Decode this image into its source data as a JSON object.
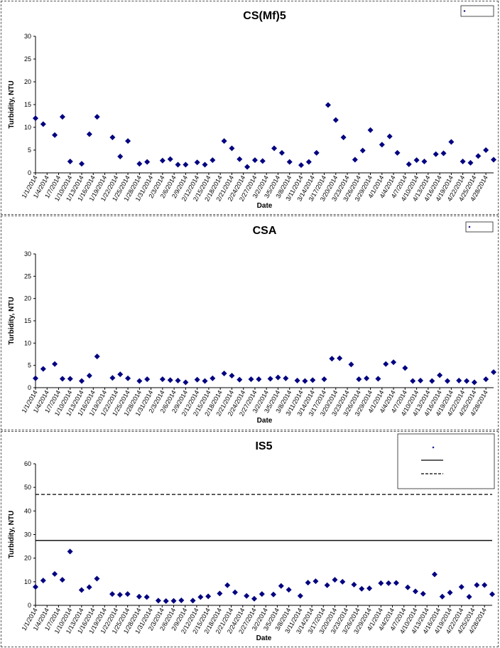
{
  "chart_data": [
    {
      "type": "scatter",
      "title": "CS(Mf)5",
      "xlabel": "Date",
      "ylabel": "Turbidity, NTU",
      "ylim": [
        0,
        30
      ],
      "yticks": [
        0,
        5,
        10,
        15,
        20,
        25,
        30
      ],
      "xlim": [
        "1/1/2014",
        "4/30/2014"
      ],
      "xtick_labels": [
        "1/1/2014",
        "1/4/2014",
        "1/7/2014",
        "1/10/2014",
        "1/13/2014",
        "1/16/2014",
        "1/19/2014",
        "1/22/2014",
        "1/25/2014",
        "1/28/2014",
        "1/31/2014",
        "2/3/2014",
        "2/6/2014",
        "2/9/2014",
        "2/12/2014",
        "2/15/2014",
        "2/18/2014",
        "2/21/2014",
        "2/24/2014",
        "2/27/2014",
        "3/2/2014",
        "3/5/2014",
        "3/8/2014",
        "3/11/2014",
        "3/14/2014",
        "3/17/2014",
        "3/20/2014",
        "3/23/2014",
        "3/26/2014",
        "3/29/2014",
        "4/1/2014",
        "4/4/2014",
        "4/7/2014",
        "4/10/2014",
        "4/13/2014",
        "4/16/2014",
        "4/19/2014",
        "4/22/2014",
        "4/25/2014",
        "4/28/2014"
      ],
      "grid": false,
      "legend": "top-right",
      "series": [
        {
          "name": "",
          "color": "#000080",
          "marker": "diamond",
          "x": [
            "1/1/2014",
            "1/3/2014",
            "1/6/2014",
            "1/8/2014",
            "1/10/2014",
            "1/13/2014",
            "1/15/2014",
            "1/17/2014",
            "1/21/2014",
            "1/23/2014",
            "1/25/2014",
            "1/28/2014",
            "1/30/2014",
            "2/3/2014",
            "2/5/2014",
            "2/7/2014",
            "2/9/2014",
            "2/12/2014",
            "2/14/2014",
            "2/16/2014",
            "2/19/2014",
            "2/21/2014",
            "2/23/2014",
            "2/25/2014",
            "2/27/2014",
            "3/1/2014",
            "3/4/2014",
            "3/6/2014",
            "3/8/2014",
            "3/11/2014",
            "3/13/2014",
            "3/15/2014",
            "3/18/2014",
            "3/20/2014",
            "3/22/2014",
            "3/25/2014",
            "3/27/2014",
            "3/29/2014",
            "4/1/2014",
            "4/3/2014",
            "4/5/2014",
            "4/8/2014",
            "4/10/2014",
            "4/12/2014",
            "4/15/2014",
            "4/17/2014",
            "4/19/2014",
            "4/22/2014",
            "4/24/2014",
            "4/26/2014",
            "4/28/2014",
            "4/30/2014"
          ],
          "y": [
            12,
            10.7,
            8.3,
            12.3,
            2.5,
            2,
            8.5,
            12.3,
            7.8,
            3.6,
            7,
            2,
            2.4,
            2.7,
            3,
            1.8,
            1.8,
            2.3,
            1.8,
            2.8,
            7,
            5.4,
            3,
            1.3,
            2.8,
            2.6,
            5.4,
            4.4,
            2.4,
            1.7,
            2.4,
            4.4,
            14.9,
            11.6,
            7.8,
            2.9,
            4.9,
            9.4,
            6.2,
            8,
            4.4,
            1.9,
            2.8,
            2.5,
            4.1,
            4.3,
            6.8,
            2.5,
            2.2,
            3.7,
            5,
            2.9
          ]
        }
      ]
    },
    {
      "type": "scatter",
      "title": "CSA",
      "xlabel": "Date",
      "ylabel": "Turbidity, NTU",
      "ylim": [
        0,
        30
      ],
      "yticks": [
        0,
        5,
        10,
        15,
        20,
        25,
        30
      ],
      "xlim": [
        "1/1/2014",
        "4/30/2014"
      ],
      "xtick_labels": [
        "1/1/2014",
        "1/4/2014",
        "1/7/2014",
        "1/10/2014",
        "1/13/2014",
        "1/16/2014",
        "1/19/2014",
        "1/22/2014",
        "1/25/2014",
        "1/28/2014",
        "1/31/2014",
        "2/3/2014",
        "2/6/2014",
        "2/9/2014",
        "2/12/2014",
        "2/15/2014",
        "2/18/2014",
        "2/21/2014",
        "2/24/2014",
        "2/27/2014",
        "3/2/2014",
        "3/5/2014",
        "3/8/2014",
        "3/11/2014",
        "3/14/2014",
        "3/17/2014",
        "3/20/2014",
        "3/23/2014",
        "3/26/2014",
        "3/29/2014",
        "4/1/2014",
        "4/4/2014",
        "4/7/2014",
        "4/10/2014",
        "4/13/2014",
        "4/16/2014",
        "4/19/2014",
        "4/22/2014",
        "4/25/2014",
        "4/28/2014"
      ],
      "grid": false,
      "legend": "top-right",
      "series": [
        {
          "name": "",
          "color": "#000080",
          "marker": "diamond",
          "x": [
            "1/1/2014",
            "1/3/2014",
            "1/6/2014",
            "1/8/2014",
            "1/10/2014",
            "1/13/2014",
            "1/15/2014",
            "1/17/2014",
            "1/21/2014",
            "1/23/2014",
            "1/25/2014",
            "1/28/2014",
            "1/30/2014",
            "2/3/2014",
            "2/5/2014",
            "2/7/2014",
            "2/9/2014",
            "2/12/2014",
            "2/14/2014",
            "2/16/2014",
            "2/19/2014",
            "2/21/2014",
            "2/23/2014",
            "2/26/2014",
            "2/28/2014",
            "3/3/2014",
            "3/5/2014",
            "3/7/2014",
            "3/10/2014",
            "3/12/2014",
            "3/14/2014",
            "3/17/2014",
            "3/19/2014",
            "3/21/2014",
            "3/24/2014",
            "3/26/2014",
            "3/28/2014",
            "3/31/2014",
            "4/2/2014",
            "4/4/2014",
            "4/7/2014",
            "4/9/2014",
            "4/11/2014",
            "4/14/2014",
            "4/16/2014",
            "4/18/2014",
            "4/21/2014",
            "4/23/2014",
            "4/25/2014",
            "4/28/2014",
            "4/30/2014"
          ],
          "y": [
            2.1,
            4.2,
            5.3,
            2,
            2,
            1.5,
            2.7,
            7,
            2.2,
            3,
            2.1,
            1.5,
            1.9,
            1.9,
            1.7,
            1.6,
            1.2,
            1.8,
            1.5,
            2.1,
            3.2,
            2.7,
            1.8,
            1.9,
            1.9,
            2,
            2.3,
            2.1,
            1.6,
            1.5,
            1.7,
            1.9,
            6.5,
            6.6,
            5.2,
            1.9,
            2.1,
            2,
            5.3,
            5.7,
            4.4,
            1.5,
            1.6,
            1.5,
            2.8,
            1.5,
            1.6,
            1.5,
            1.2,
            1.9,
            3.5
          ]
        }
      ]
    },
    {
      "type": "scatter",
      "title": "IS5",
      "xlabel": "Date",
      "ylabel": "Turbidity, NTU",
      "ylim": [
        0,
        60
      ],
      "yticks": [
        0,
        10,
        20,
        30,
        40,
        50,
        60
      ],
      "xlim": [
        "1/1/2014",
        "4/30/2014"
      ],
      "xtick_labels": [
        "1/1/2014",
        "1/4/2014",
        "1/7/2014",
        "1/10/2014",
        "1/13/2014",
        "1/16/2014",
        "1/19/2014",
        "1/22/2014",
        "1/25/2014",
        "1/28/2014",
        "1/31/2014",
        "2/3/2014",
        "2/6/2014",
        "2/9/2014",
        "2/12/2014",
        "2/15/2014",
        "2/18/2014",
        "2/21/2014",
        "2/24/2014",
        "2/27/2014",
        "3/2/2014",
        "3/5/2014",
        "3/8/2014",
        "3/11/2014",
        "3/14/2014",
        "3/17/2014",
        "3/20/2014",
        "3/23/2014",
        "3/26/2014",
        "3/29/2014",
        "4/1/2014",
        "4/4/2014",
        "4/7/2014",
        "4/10/2014",
        "4/13/2014",
        "4/16/2014",
        "4/19/2014",
        "4/22/2014",
        "4/25/2014",
        "4/28/2014"
      ],
      "grid": false,
      "legend": "top-right",
      "series": [
        {
          "name": "",
          "color": "#000080",
          "marker": "diamond",
          "x": [
            "1/1/2014",
            "1/3/2014",
            "1/6/2014",
            "1/8/2014",
            "1/10/2014",
            "1/13/2014",
            "1/15/2014",
            "1/17/2014",
            "1/21/2014",
            "1/23/2014",
            "1/25/2014",
            "1/28/2014",
            "1/30/2014",
            "2/2/2014",
            "2/4/2014",
            "2/6/2014",
            "2/8/2014",
            "2/11/2014",
            "2/13/2014",
            "2/15/2014",
            "2/18/2014",
            "2/20/2014",
            "2/22/2014",
            "2/25/2014",
            "2/27/2014",
            "3/1/2014",
            "3/4/2014",
            "3/6/2014",
            "3/8/2014",
            "3/11/2014",
            "3/13/2014",
            "3/15/2014",
            "3/18/2014",
            "3/20/2014",
            "3/22/2014",
            "3/25/2014",
            "3/27/2014",
            "3/29/2014",
            "4/1/2014",
            "4/3/2014",
            "4/5/2014",
            "4/8/2014",
            "4/10/2014",
            "4/12/2014",
            "4/15/2014",
            "4/17/2014",
            "4/19/2014",
            "4/22/2014",
            "4/24/2014",
            "4/26/2014",
            "4/28/2014",
            "4/30/2014"
          ],
          "y": [
            7.8,
            10.5,
            13.3,
            10.8,
            22.8,
            6.5,
            7.7,
            11.3,
            4.8,
            4.5,
            4.8,
            3.7,
            3.5,
            2,
            1.8,
            1.9,
            2.1,
            2,
            3.5,
            3.8,
            5,
            8.5,
            5.5,
            4,
            2.8,
            4.8,
            4.6,
            8.2,
            6.6,
            4,
            9.6,
            10.2,
            8.5,
            10.8,
            10,
            8.8,
            7,
            7.2,
            9.4,
            9.4,
            9.5,
            7.6,
            5.9,
            4.9,
            13.1,
            3.7,
            5.4,
            7.8,
            3.6,
            8.6,
            8.6,
            4.7
          ]
        },
        {
          "name": "",
          "type": "hline",
          "style": "solid",
          "y": 27.5
        },
        {
          "name": "",
          "type": "hline",
          "style": "dashed",
          "y": 47
        }
      ]
    }
  ]
}
